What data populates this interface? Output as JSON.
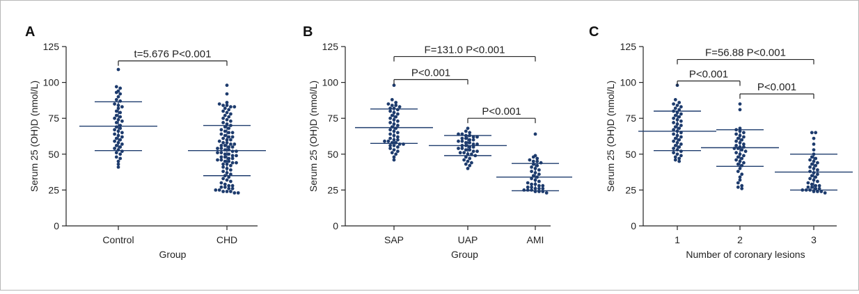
{
  "colors": {
    "dot": "#1d3b6d",
    "line": "#1d3b6d",
    "axis": "#222222",
    "text": "#222222"
  },
  "chart_data": [
    {
      "type": "scatter",
      "panel_letter": "A",
      "ylabel": "Serum 25 (OH)D (nmol/L)",
      "xlabel": "Group",
      "ylim": [
        0,
        125
      ],
      "yticks": [
        "0",
        "25",
        "50",
        "75",
        "100",
        "125"
      ],
      "categories": [
        "Control",
        "CHD"
      ],
      "groups": [
        {
          "name": "Control",
          "mean": 69.5,
          "sd_low": 52.5,
          "sd_high": 86.5,
          "values": [
            109,
            97,
            96,
            94,
            93,
            92,
            90,
            88,
            87,
            85,
            84,
            83,
            82,
            80,
            79,
            77,
            76,
            75,
            74,
            73,
            72,
            70,
            69,
            68,
            67,
            66,
            65,
            64,
            63,
            62,
            61,
            60,
            59,
            58,
            57,
            56,
            55,
            54,
            53,
            52,
            51,
            50,
            48,
            47,
            45,
            43,
            41
          ]
        },
        {
          "name": "CHD",
          "mean": 52.5,
          "sd_low": 35,
          "sd_high": 70,
          "values": [
            98,
            92,
            86,
            85,
            84,
            84,
            83,
            83,
            82,
            81,
            80,
            79,
            78,
            77,
            76,
            75,
            74,
            73,
            72,
            71,
            70,
            69,
            68,
            67,
            66,
            65,
            65,
            64,
            63,
            62,
            62,
            61,
            60,
            60,
            59,
            58,
            58,
            57,
            57,
            56,
            56,
            55,
            55,
            54,
            54,
            53,
            53,
            52,
            52,
            51,
            51,
            50,
            50,
            49,
            49,
            48,
            48,
            47,
            47,
            46,
            46,
            45,
            45,
            44,
            44,
            43,
            43,
            42,
            41,
            40,
            39,
            38,
            37,
            36,
            35,
            34,
            33,
            32,
            31,
            30,
            29,
            28,
            28,
            27,
            27,
            26,
            26,
            25,
            25,
            24,
            24,
            24,
            23,
            23
          ]
        }
      ],
      "annotations": [
        {
          "text": "t=5.676 P<0.001",
          "from": 0,
          "to": 1,
          "y": 115
        }
      ]
    },
    {
      "type": "scatter",
      "panel_letter": "B",
      "ylabel": "Serum 25 (OH)D (nmol/L)",
      "xlabel": "Group",
      "ylim": [
        0,
        125
      ],
      "yticks": [
        "0",
        "25",
        "50",
        "75",
        "100",
        "125"
      ],
      "categories": [
        "SAP",
        "UAP",
        "AMI"
      ],
      "groups": [
        {
          "name": "SAP",
          "mean": 68.5,
          "sd_low": 57.5,
          "sd_high": 81.5,
          "values": [
            98,
            88,
            86,
            85,
            84,
            84,
            83,
            82,
            82,
            81,
            80,
            79,
            78,
            77,
            76,
            75,
            74,
            73,
            72,
            71,
            70,
            69,
            68,
            67,
            66,
            65,
            64,
            63,
            62,
            61,
            60,
            60,
            59,
            59,
            58,
            58,
            57,
            57,
            56,
            56,
            55,
            54,
            53,
            52,
            51,
            50,
            48,
            46
          ]
        },
        {
          "name": "UAP",
          "mean": 56,
          "sd_low": 49,
          "sd_high": 63,
          "values": [
            68,
            66,
            65,
            64,
            64,
            63,
            63,
            62,
            62,
            61,
            61,
            60,
            60,
            59,
            59,
            58,
            58,
            57,
            57,
            56,
            56,
            55,
            55,
            54,
            54,
            53,
            53,
            52,
            52,
            51,
            51,
            50,
            50,
            49,
            48,
            47,
            46,
            45,
            44,
            43,
            42,
            40
          ]
        },
        {
          "name": "AMI",
          "mean": 34,
          "sd_low": 24.5,
          "sd_high": 43.5,
          "values": [
            64,
            49,
            48,
            47,
            46,
            45,
            45,
            44,
            43,
            42,
            41,
            40,
            39,
            38,
            37,
            36,
            35,
            34,
            33,
            32,
            31,
            30,
            29,
            29,
            28,
            28,
            27,
            27,
            26,
            26,
            26,
            25,
            25,
            25,
            24,
            24,
            24,
            23
          ]
        }
      ],
      "annotations": [
        {
          "text": "F=131.0 P<0.001",
          "from": 0,
          "to": 2,
          "y": 118
        },
        {
          "text": "P<0.001",
          "from": 0,
          "to": 1,
          "y": 102
        },
        {
          "text": "P<0.001",
          "from": 1,
          "to": 2,
          "y": 75
        }
      ]
    },
    {
      "type": "scatter",
      "panel_letter": "C",
      "ylabel": "Serum 25 (OH)D (nmol/L)",
      "xlabel": "Number of coronary lesions",
      "ylim": [
        0,
        125
      ],
      "yticks": [
        "0",
        "25",
        "50",
        "75",
        "100",
        "125"
      ],
      "categories": [
        "1",
        "2",
        "3"
      ],
      "groups": [
        {
          "name": "1",
          "mean": 66,
          "sd_low": 52.5,
          "sd_high": 80,
          "values": [
            98,
            88,
            86,
            85,
            84,
            83,
            82,
            81,
            80,
            79,
            78,
            77,
            76,
            75,
            74,
            73,
            72,
            71,
            70,
            69,
            68,
            67,
            66,
            65,
            64,
            63,
            62,
            61,
            60,
            59,
            58,
            57,
            56,
            55,
            54,
            53,
            52,
            51,
            50,
            49,
            48,
            47,
            46,
            45
          ]
        },
        {
          "name": "2",
          "mean": 54.5,
          "sd_low": 41.5,
          "sd_high": 67,
          "values": [
            85,
            81,
            68,
            67,
            66,
            65,
            64,
            63,
            62,
            61,
            60,
            59,
            58,
            57,
            56,
            55,
            55,
            54,
            54,
            53,
            52,
            51,
            50,
            49,
            48,
            47,
            46,
            45,
            44,
            43,
            42,
            40,
            38,
            36,
            34,
            32,
            30,
            28,
            27,
            26
          ]
        },
        {
          "name": "3",
          "mean": 37.5,
          "sd_low": 25,
          "sd_high": 50,
          "values": [
            65,
            65,
            61,
            57,
            53,
            50,
            48,
            47,
            46,
            45,
            44,
            43,
            42,
            41,
            40,
            39,
            38,
            37,
            36,
            35,
            34,
            33,
            32,
            31,
            30,
            29,
            28,
            28,
            27,
            27,
            26,
            26,
            25,
            25,
            25,
            24,
            24,
            24,
            23
          ]
        }
      ],
      "annotations": [
        {
          "text": "F=56.88 P<0.001",
          "from": 0,
          "to": 2,
          "y": 116
        },
        {
          "text": "P<0.001",
          "from": 0,
          "to": 1,
          "y": 101
        },
        {
          "text": "P<0.001",
          "from": 1,
          "to": 2,
          "y": 92
        }
      ]
    }
  ]
}
